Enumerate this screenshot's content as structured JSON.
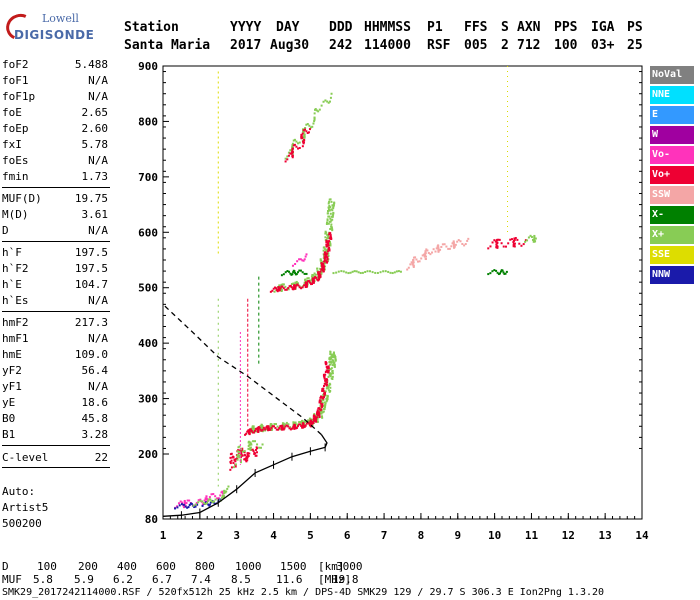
{
  "logo": {
    "line1": "Lowell",
    "line2": "DIGISONDE"
  },
  "header": {
    "row1": [
      {
        "text": "Station",
        "col": 0
      },
      {
        "text": "YYYY",
        "col": 106
      },
      {
        "text": "DAY",
        "col": 152
      },
      {
        "text": "DDD",
        "col": 205
      },
      {
        "text": "HHMMSS",
        "col": 240
      },
      {
        "text": "P1",
        "col": 303
      },
      {
        "text": "FFS",
        "col": 340
      },
      {
        "text": "S",
        "col": 377
      },
      {
        "text": "AXN",
        "col": 393
      },
      {
        "text": "PPS",
        "col": 430
      },
      {
        "text": "IGA",
        "col": 467
      },
      {
        "text": "PS",
        "col": 503
      }
    ],
    "row2": [
      {
        "text": "Santa Maria",
        "col": 0
      },
      {
        "text": "2017",
        "col": 106
      },
      {
        "text": "Aug30",
        "col": 146
      },
      {
        "text": "242",
        "col": 205
      },
      {
        "text": "114000",
        "col": 240
      },
      {
        "text": "RSF",
        "col": 303
      },
      {
        "text": "005",
        "col": 340
      },
      {
        "text": "2",
        "col": 377
      },
      {
        "text": "712",
        "col": 393
      },
      {
        "text": "100",
        "col": 430
      },
      {
        "text": "03+",
        "col": 467
      },
      {
        "text": "25",
        "col": 503
      }
    ]
  },
  "params": {
    "group1": [
      {
        "name": "foF2",
        "value": "5.488"
      },
      {
        "name": "foF1",
        "value": "N/A"
      },
      {
        "name": "foF1p",
        "value": "N/A"
      },
      {
        "name": "foE",
        "value": "2.65"
      },
      {
        "name": "foEp",
        "value": "2.60"
      },
      {
        "name": "fxI",
        "value": "5.78"
      },
      {
        "name": "foEs",
        "value": "N/A"
      },
      {
        "name": "fmin",
        "value": "1.73"
      }
    ],
    "group2": [
      {
        "name": "MUF(D)",
        "value": "19.75"
      },
      {
        "name": "M(D)",
        "value": "3.61"
      },
      {
        "name": "D",
        "value": "N/A"
      }
    ],
    "group3": [
      {
        "name": "h`F",
        "value": "197.5"
      },
      {
        "name": "h`F2",
        "value": "197.5"
      },
      {
        "name": "h`E",
        "value": "104.7"
      },
      {
        "name": "h`Es",
        "value": "N/A"
      }
    ],
    "group4": [
      {
        "name": "hmF2",
        "value": "217.3"
      },
      {
        "name": "hmF1",
        "value": "N/A"
      },
      {
        "name": "hmE",
        "value": "109.0"
      },
      {
        "name": "yF2",
        "value": "56.4"
      },
      {
        "name": "yF1",
        "value": "N/A"
      },
      {
        "name": "yE",
        "value": "18.6"
      },
      {
        "name": "B0",
        "value": "45.8"
      },
      {
        "name": "B1",
        "value": "3.28"
      }
    ],
    "clevel": {
      "name": "C-level",
      "value": "22"
    }
  },
  "auto": {
    "line1": "Auto:",
    "line2": "Artist5",
    "line3": "500200"
  },
  "legend": [
    {
      "label": "NoVal",
      "color": "#808080"
    },
    {
      "label": "NNE",
      "color": "#00e0ff"
    },
    {
      "label": "E",
      "color": "#3399ff"
    },
    {
      "label": "W",
      "color": "#a000a0"
    },
    {
      "label": "Vo-",
      "color": "#ff33bb"
    },
    {
      "label": "Vo+",
      "color": "#ee0033"
    },
    {
      "label": "SSW",
      "color": "#f4a6a6"
    },
    {
      "label": "X-",
      "color": "#008000"
    },
    {
      "label": "X+",
      "color": "#88cc55"
    },
    {
      "label": "SSE",
      "color": "#dddd00"
    },
    {
      "label": "NNW",
      "color": "#1a1aaa"
    }
  ],
  "axes": {
    "y_ticks": [
      "80",
      "200",
      "300",
      "400",
      "500",
      "600",
      "700",
      "800",
      "900"
    ],
    "x_ticks": [
      "1",
      "2",
      "3",
      "4",
      "5",
      "6",
      "7",
      "8",
      "9",
      "10",
      "11",
      "12",
      "13",
      "14"
    ]
  },
  "muf_table": {
    "d_label": "D",
    "d_values": [
      "100",
      "200",
      "400",
      "600",
      "800",
      "1000",
      "1500",
      "3000"
    ],
    "d_unit": "[km]",
    "muf_label": "MUF",
    "muf_values": [
      "5.8",
      "5.9",
      "6.2",
      "6.7",
      "7.4",
      "8.5",
      "11.6",
      "19.8"
    ],
    "muf_unit": "[MHz]"
  },
  "footer": "SMK29_2017242114000.RSF / 520fx512h 25 kHz 2.5 km / DPS-4D SMK29 129 / 29.7 S 306.3 E Ion2Png 1.3.20",
  "chart_data": {
    "type": "scatter",
    "xlim": [
      1,
      14
    ],
    "ylim": [
      80,
      900
    ],
    "series": [
      {
        "name": "X+",
        "color": "#88cc55",
        "points": [
          [
            4.0,
            255
          ],
          [
            4.5,
            258
          ],
          [
            5.0,
            265
          ],
          [
            5.3,
            290
          ],
          [
            5.5,
            330
          ],
          [
            5.6,
            370
          ],
          [
            4.0,
            520
          ],
          [
            5.0,
            540
          ],
          [
            5.5,
            600
          ],
          [
            10.9,
            590
          ],
          [
            11.2,
            590
          ]
        ]
      },
      {
        "name": "Vo+",
        "color": "#ee0033",
        "points": [
          [
            3.5,
            240
          ],
          [
            4.0,
            250
          ],
          [
            4.5,
            252
          ],
          [
            5.0,
            258
          ],
          [
            5.3,
            290
          ],
          [
            5.45,
            350
          ],
          [
            4.0,
            505
          ],
          [
            5.0,
            520
          ],
          [
            5.4,
            560
          ],
          [
            5.5,
            600
          ],
          [
            9.8,
            585
          ],
          [
            10.5,
            585
          ]
        ]
      },
      {
        "name": "SSW",
        "color": "#f4a6a6",
        "points": [
          [
            8.5,
            575
          ],
          [
            9.0,
            580
          ],
          [
            7.8,
            545
          ],
          [
            8.2,
            560
          ]
        ]
      },
      {
        "name": "X-",
        "color": "#008000",
        "points": [
          [
            4.2,
            530
          ],
          [
            4.8,
            532
          ],
          [
            9.8,
            530
          ],
          [
            10.4,
            530
          ]
        ]
      },
      {
        "name": "Vo-",
        "color": "#ff33bb",
        "points": [
          [
            1.5,
            110
          ],
          [
            2.0,
            115
          ],
          [
            2.3,
            120
          ],
          [
            2.8,
            200
          ],
          [
            3.3,
            210
          ]
        ]
      },
      {
        "name": "SSE",
        "color": "#dddd00",
        "points": [
          [
            2.5,
            400
          ],
          [
            2.5,
            600
          ],
          [
            3.2,
            300
          ]
        ]
      }
    ]
  }
}
